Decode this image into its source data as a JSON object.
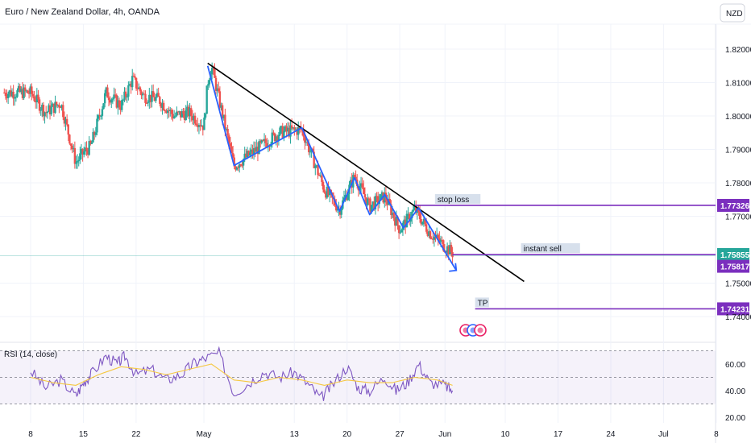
{
  "header": {
    "title": "Euro / New Zealand Dollar, 4h, OANDA",
    "currency_badge": "NZD"
  },
  "chart_data": [
    {
      "type": "candlestick",
      "symbol": "EURNZD",
      "timeframe": "4h",
      "ylim": [
        1.736,
        1.826
      ],
      "price_ticks": [
        {
          "value": 1.82,
          "label": "1.82000"
        },
        {
          "value": 1.81,
          "label": "1.81000"
        },
        {
          "value": 1.8,
          "label": "1.80000"
        },
        {
          "value": 1.79,
          "label": "1.79000"
        },
        {
          "value": 1.78,
          "label": "1.78000"
        },
        {
          "value": 1.77,
          "label": "1.77000"
        },
        {
          "value": 1.75,
          "label": "1.75000"
        },
        {
          "value": 1.74,
          "label": "1.74000"
        }
      ],
      "date_ticks": [
        {
          "day": 0,
          "label": "8"
        },
        {
          "day": 7,
          "label": "15"
        },
        {
          "day": 14,
          "label": "22"
        },
        {
          "day": 23,
          "label": "May"
        },
        {
          "day": 35,
          "label": "13"
        },
        {
          "day": 42,
          "label": "20"
        },
        {
          "day": 49,
          "label": "27"
        },
        {
          "day": 55,
          "label": "Jun"
        },
        {
          "day": 63,
          "label": "10"
        },
        {
          "day": 70,
          "label": "17"
        },
        {
          "day": 77,
          "label": "24"
        },
        {
          "day": 84,
          "label": "Jul"
        },
        {
          "day": 91,
          "label": "8"
        }
      ],
      "candles_close_path": [
        [
          0,
          1.807
        ],
        [
          2,
          1.801
        ],
        [
          4,
          1.804
        ],
        [
          6,
          1.786
        ],
        [
          7,
          1.789
        ],
        [
          8,
          1.791
        ],
        [
          10,
          1.807
        ],
        [
          12,
          1.803
        ],
        [
          13.5,
          1.811
        ],
        [
          15,
          1.806
        ],
        [
          17,
          1.805
        ],
        [
          19,
          1.8
        ],
        [
          21,
          1.801
        ],
        [
          23,
          1.797
        ],
        [
          23.5,
          1.81
        ],
        [
          24,
          1.815
        ],
        [
          27,
          1.785
        ],
        [
          30,
          1.79
        ],
        [
          33,
          1.795
        ],
        [
          36,
          1.796
        ],
        [
          39,
          1.778
        ],
        [
          41,
          1.772
        ],
        [
          43,
          1.782
        ],
        [
          45,
          1.773
        ],
        [
          47,
          1.776
        ],
        [
          49,
          1.766
        ],
        [
          51,
          1.772
        ],
        [
          53,
          1.765
        ],
        [
          55,
          1.761
        ],
        [
          56,
          1.759
        ]
      ],
      "wedge_pattern_points": [
        [
          23.5,
          1.815
        ],
        [
          27,
          1.7852
        ],
        [
          36,
          1.7965
        ],
        [
          41,
          1.7715
        ],
        [
          43,
          1.7815
        ],
        [
          45,
          1.7705
        ],
        [
          47,
          1.7765
        ],
        [
          49.5,
          1.7665
        ],
        [
          51.5,
          1.7725
        ],
        [
          56.5,
          1.7538
        ]
      ],
      "trendline": {
        "start": [
          23.5,
          1.8158
        ],
        "end": [
          65.5,
          1.7505
        ]
      },
      "levels": [
        {
          "name": "stop loss",
          "value": 1.77326,
          "label": "1.77326",
          "text": "stop loss",
          "from_day": 51,
          "color": "#7b2fbe"
        },
        {
          "name": "instant sell",
          "value": 1.75855,
          "label": "1.75855",
          "text": "instant sell",
          "from_day": 56,
          "color": "#7b2fbe"
        },
        {
          "name": "TP",
          "value": 1.74231,
          "label": "1.74231",
          "text": "TP",
          "from_day": 59,
          "color": "#7b2fbe"
        }
      ],
      "current_price": {
        "value": 1.75817,
        "label": "1.75817",
        "tag_color": "#7b2fbe"
      },
      "instant_sell_tag_color": "#26a69a",
      "event_icons": [
        "lightning-icon",
        "dividend-icon",
        "earnings-icon"
      ]
    },
    {
      "type": "line",
      "title": "RSI (14, close)",
      "ylim": [
        15,
        75
      ],
      "y_ticks": [
        {
          "value": 60,
          "label": "60.00"
        },
        {
          "value": 40,
          "label": "40.00"
        },
        {
          "value": 20,
          "label": "20.00"
        }
      ],
      "band": [
        30,
        70
      ],
      "middle": 50,
      "series": [
        {
          "color": "#7e57c2",
          "points": [
            [
              0,
              55
            ],
            [
              2,
              42
            ],
            [
              4,
              48
            ],
            [
              6,
              36
            ],
            [
              7,
              46
            ],
            [
              8,
              52
            ],
            [
              10,
              66
            ],
            [
              11.5,
              60
            ],
            [
              12.5,
              66
            ],
            [
              14,
              52
            ],
            [
              16,
              56
            ],
            [
              18,
              48
            ],
            [
              20,
              52
            ],
            [
              21.5,
              60
            ],
            [
              23,
              64
            ],
            [
              25,
              68
            ],
            [
              27,
              38
            ],
            [
              29,
              46
            ],
            [
              31,
              54
            ],
            [
              33,
              50
            ],
            [
              35,
              54
            ],
            [
              37,
              44
            ],
            [
              38.5,
              34
            ],
            [
              40,
              44
            ],
            [
              42,
              58
            ],
            [
              43.5,
              42
            ],
            [
              45,
              40
            ],
            [
              47,
              50
            ],
            [
              48.5,
              40
            ],
            [
              50,
              46
            ],
            [
              51.5,
              60
            ],
            [
              53,
              46
            ],
            [
              55,
              44
            ],
            [
              56,
              40
            ]
          ]
        },
        {
          "color": "#f5c842",
          "points": [
            [
              0,
              50
            ],
            [
              3,
              46
            ],
            [
              6,
              44
            ],
            [
              9,
              52
            ],
            [
              12,
              58
            ],
            [
              15,
              56
            ],
            [
              18,
              52
            ],
            [
              21,
              56
            ],
            [
              24,
              60
            ],
            [
              27,
              48
            ],
            [
              30,
              46
            ],
            [
              33,
              50
            ],
            [
              36,
              48
            ],
            [
              39,
              44
            ],
            [
              42,
              48
            ],
            [
              45,
              46
            ],
            [
              48,
              46
            ],
            [
              51,
              50
            ],
            [
              54,
              48
            ],
            [
              56,
              44
            ]
          ]
        }
      ]
    }
  ]
}
